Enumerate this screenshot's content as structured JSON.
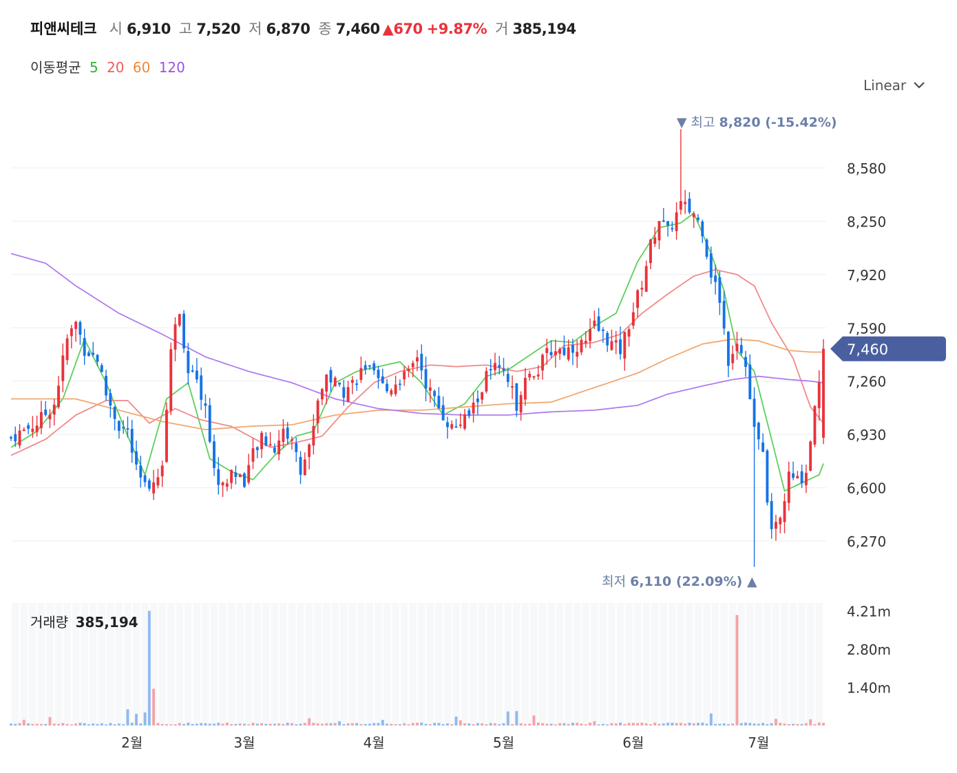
{
  "header": {
    "name": "피앤씨테크",
    "open_label": "시",
    "open": "6,910",
    "high_label": "고",
    "high": "7,520",
    "low_label": "저",
    "low": "6,870",
    "close_label": "종",
    "close": "7,460",
    "change": "▲670",
    "change_pct": "+9.87%",
    "volume_label": "거",
    "volume": "385,194"
  },
  "ma_legend": {
    "label": "이동평균",
    "periods": [
      "5",
      "20",
      "60",
      "120"
    ],
    "colors": [
      "#2db52d",
      "#f25b5b",
      "#f0883a",
      "#9b51e0"
    ]
  },
  "scale_selector": {
    "value": "Linear"
  },
  "colors": {
    "up": "#e8333b",
    "down": "#1673e6",
    "grid": "#eeeeee",
    "price_tag": "#4a5fa0",
    "annot": "#6b7fa8"
  },
  "chart_data": {
    "type": "candlestick",
    "price_axis": {
      "ticks": [
        8580,
        8250,
        7920,
        7590,
        7260,
        6930,
        6600,
        6270
      ],
      "tick_labels": [
        "8,580",
        "8,250",
        "7,920",
        "7,590",
        "7,260",
        "6,930",
        "6,600",
        "6,270"
      ]
    },
    "x_axis": {
      "month_labels": [
        "2월",
        "3월",
        "4월",
        "5월",
        "6월",
        "7월"
      ],
      "month_start_index": [
        28,
        54,
        84,
        114,
        144,
        173
      ]
    },
    "current_price": {
      "value": 7460,
      "label": "7,460"
    },
    "high_annotation": {
      "text": "▼ 최고",
      "value": "8,820 (-15.42%)",
      "index": 155
    },
    "low_annotation": {
      "text": "최저",
      "value": "6,110 (22.09%) ▲",
      "index": 172
    },
    "volume_axis": {
      "ticks": [
        4210000,
        2800000,
        1400000
      ],
      "tick_labels": [
        "4.21m",
        "2.80m",
        "1.40m"
      ],
      "max": 4500000
    },
    "volume_label": "거래량",
    "volume_value": "385,194",
    "ma_series": [
      {
        "name": "5",
        "color": "#5ccf5c",
        "anchors": [
          [
            0,
            6850
          ],
          [
            6,
            6950
          ],
          [
            12,
            7150
          ],
          [
            17,
            7520
          ],
          [
            22,
            7250
          ],
          [
            27,
            6920
          ],
          [
            31,
            6680
          ],
          [
            36,
            7150
          ],
          [
            41,
            7250
          ],
          [
            46,
            6780
          ],
          [
            51,
            6700
          ],
          [
            56,
            6650
          ],
          [
            61,
            6800
          ],
          [
            66,
            6920
          ],
          [
            70,
            6950
          ],
          [
            75,
            7250
          ],
          [
            80,
            7320
          ],
          [
            85,
            7350
          ],
          [
            90,
            7380
          ],
          [
            95,
            7250
          ],
          [
            100,
            7050
          ],
          [
            105,
            7120
          ],
          [
            110,
            7290
          ],
          [
            115,
            7330
          ],
          [
            120,
            7420
          ],
          [
            125,
            7510
          ],
          [
            130,
            7500
          ],
          [
            135,
            7600
          ],
          [
            140,
            7680
          ],
          [
            145,
            8000
          ],
          [
            150,
            8210
          ],
          [
            155,
            8240
          ],
          [
            158,
            8300
          ],
          [
            162,
            8050
          ],
          [
            165,
            7820
          ],
          [
            168,
            7450
          ],
          [
            172,
            7320
          ],
          [
            176,
            6900
          ],
          [
            179,
            6580
          ],
          [
            183,
            6630
          ],
          [
            187,
            6680
          ],
          [
            188,
            6750
          ]
        ]
      },
      {
        "name": "20",
        "color": "#f08a8a",
        "anchors": [
          [
            0,
            6800
          ],
          [
            8,
            6900
          ],
          [
            15,
            7050
          ],
          [
            22,
            7140
          ],
          [
            27,
            7140
          ],
          [
            32,
            7000
          ],
          [
            38,
            7090
          ],
          [
            44,
            7020
          ],
          [
            51,
            6980
          ],
          [
            60,
            6850
          ],
          [
            66,
            6880
          ],
          [
            72,
            6920
          ],
          [
            78,
            7100
          ],
          [
            84,
            7250
          ],
          [
            90,
            7320
          ],
          [
            97,
            7360
          ],
          [
            103,
            7350
          ],
          [
            110,
            7360
          ],
          [
            117,
            7320
          ],
          [
            123,
            7350
          ],
          [
            128,
            7480
          ],
          [
            135,
            7500
          ],
          [
            141,
            7550
          ],
          [
            146,
            7680
          ],
          [
            152,
            7800
          ],
          [
            158,
            7910
          ],
          [
            163,
            7950
          ],
          [
            168,
            7920
          ],
          [
            172,
            7850
          ],
          [
            176,
            7620
          ],
          [
            181,
            7400
          ],
          [
            185,
            7100
          ],
          [
            188,
            7000
          ]
        ]
      },
      {
        "name": "60",
        "color": "#f0a870",
        "anchors": [
          [
            0,
            7150
          ],
          [
            15,
            7150
          ],
          [
            25,
            7080
          ],
          [
            35,
            7010
          ],
          [
            45,
            6960
          ],
          [
            55,
            6980
          ],
          [
            65,
            6990
          ],
          [
            75,
            7050
          ],
          [
            85,
            7080
          ],
          [
            95,
            7080
          ],
          [
            105,
            7100
          ],
          [
            115,
            7120
          ],
          [
            125,
            7130
          ],
          [
            135,
            7220
          ],
          [
            145,
            7310
          ],
          [
            152,
            7400
          ],
          [
            160,
            7490
          ],
          [
            167,
            7520
          ],
          [
            173,
            7510
          ],
          [
            180,
            7450
          ],
          [
            185,
            7440
          ],
          [
            188,
            7440
          ]
        ]
      },
      {
        "name": "120",
        "color": "#b07cf0",
        "anchors": [
          [
            0,
            8050
          ],
          [
            8,
            7990
          ],
          [
            15,
            7850
          ],
          [
            25,
            7680
          ],
          [
            35,
            7550
          ],
          [
            45,
            7410
          ],
          [
            55,
            7320
          ],
          [
            65,
            7250
          ],
          [
            75,
            7150
          ],
          [
            85,
            7090
          ],
          [
            95,
            7060
          ],
          [
            105,
            7050
          ],
          [
            115,
            7050
          ],
          [
            125,
            7070
          ],
          [
            135,
            7080
          ],
          [
            145,
            7110
          ],
          [
            152,
            7180
          ],
          [
            160,
            7230
          ],
          [
            167,
            7270
          ],
          [
            173,
            7290
          ],
          [
            180,
            7270
          ],
          [
            185,
            7260
          ],
          [
            188,
            7250
          ]
        ]
      }
    ],
    "candles": {
      "count": 189,
      "anchors": [
        [
          0,
          6910
        ],
        [
          6,
          7000
        ],
        [
          10,
          7120
        ],
        [
          13,
          7520
        ],
        [
          15,
          7620
        ],
        [
          17,
          7460
        ],
        [
          20,
          7400
        ],
        [
          22,
          7180
        ],
        [
          25,
          6980
        ],
        [
          27,
          6950
        ],
        [
          29,
          6700
        ],
        [
          31,
          6600
        ],
        [
          35,
          6700
        ],
        [
          37,
          7480
        ],
        [
          39,
          7700
        ],
        [
          41,
          7310
        ],
        [
          43,
          7250
        ],
        [
          45,
          7100
        ],
        [
          47,
          6700
        ],
        [
          49,
          6600
        ],
        [
          51,
          6700
        ],
        [
          54,
          6650
        ],
        [
          56,
          6800
        ],
        [
          58,
          6900
        ],
        [
          61,
          6850
        ],
        [
          63,
          6950
        ],
        [
          65,
          6900
        ],
        [
          67,
          6700
        ],
        [
          69,
          6850
        ],
        [
          71,
          7150
        ],
        [
          73,
          7300
        ],
        [
          75,
          7250
        ],
        [
          77,
          7200
        ],
        [
          79,
          7250
        ],
        [
          82,
          7350
        ],
        [
          85,
          7250
        ],
        [
          87,
          7200
        ],
        [
          90,
          7280
        ],
        [
          92,
          7300
        ],
        [
          94,
          7420
        ],
        [
          96,
          7250
        ],
        [
          98,
          7140
        ],
        [
          100,
          7050
        ],
        [
          102,
          6970
        ],
        [
          104,
          7000
        ],
        [
          106,
          7050
        ],
        [
          108,
          7150
        ],
        [
          110,
          7290
        ],
        [
          112,
          7340
        ],
        [
          115,
          7260
        ],
        [
          117,
          7120
        ],
        [
          119,
          7300
        ],
        [
          121,
          7280
        ],
        [
          124,
          7430
        ],
        [
          126,
          7460
        ],
        [
          128,
          7450
        ],
        [
          130,
          7470
        ],
        [
          133,
          7500
        ],
        [
          135,
          7600
        ],
        [
          137,
          7550
        ],
        [
          139,
          7490
        ],
        [
          141,
          7450
        ],
        [
          144,
          7700
        ],
        [
          146,
          7870
        ],
        [
          148,
          8100
        ],
        [
          150,
          8270
        ],
        [
          152,
          8180
        ],
        [
          155,
          8350
        ],
        [
          158,
          8300
        ],
        [
          160,
          8200
        ],
        [
          162,
          7930
        ],
        [
          164,
          7770
        ],
        [
          166,
          7390
        ],
        [
          168,
          7520
        ],
        [
          170,
          7350
        ],
        [
          172,
          6950
        ],
        [
          174,
          6800
        ],
        [
          176,
          6300
        ],
        [
          178,
          6400
        ],
        [
          180,
          6670
        ],
        [
          182,
          6640
        ],
        [
          184,
          6700
        ],
        [
          186,
          7100
        ],
        [
          188,
          7460
        ]
      ],
      "ohlc_last": {
        "open": 6910,
        "high": 7520,
        "low": 6870,
        "close": 7460
      }
    },
    "volume_spikes": {
      "32": 4210000,
      "33": 1350000,
      "168": 4060000
    }
  }
}
